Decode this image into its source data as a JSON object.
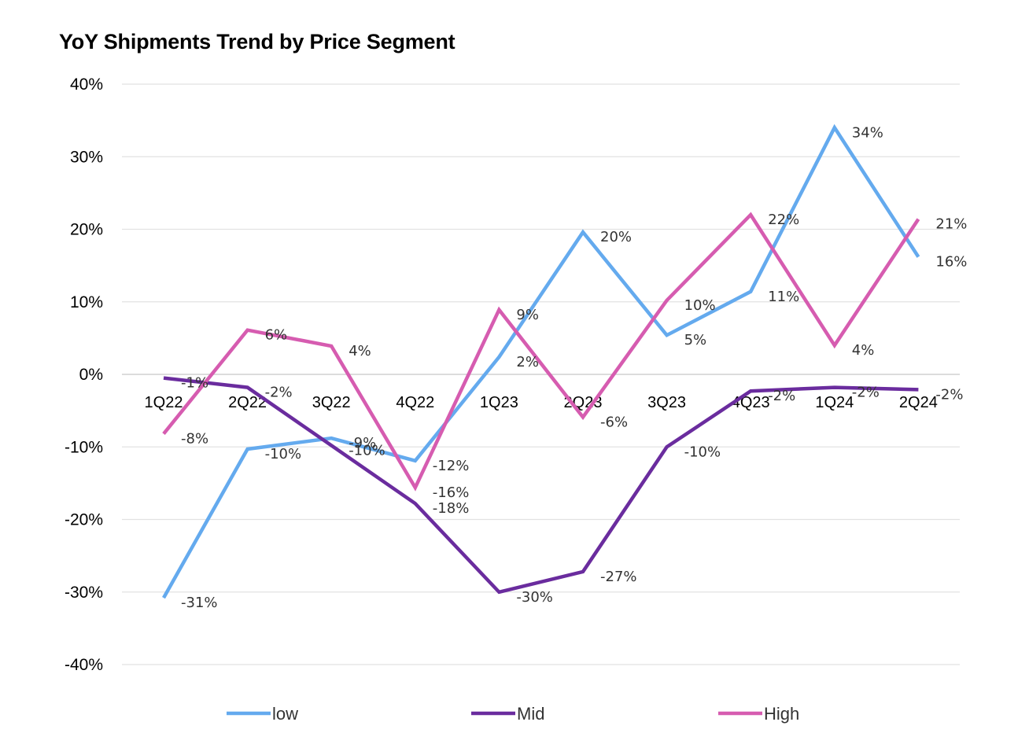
{
  "chart_data": {
    "type": "line",
    "title": "YoY Shipments Trend by Price Segment",
    "xlabel": "",
    "ylabel": "",
    "categories": [
      "1Q22",
      "2Q22",
      "3Q22",
      "4Q22",
      "1Q23",
      "2Q23",
      "3Q23",
      "4Q23",
      "1Q24",
      "2Q24"
    ],
    "ylim": [
      -40,
      40
    ],
    "yticks": [
      40,
      30,
      20,
      10,
      0,
      -10,
      -20,
      -30,
      -40
    ],
    "ytick_labels": [
      "40%",
      "30%",
      "20%",
      "10%",
      "0%",
      "-10%",
      "-20%",
      "-30%",
      "-40%"
    ],
    "grid": true,
    "legend_position": "bottom",
    "series": [
      {
        "name": "low",
        "color": "#64aaee",
        "values": [
          -30.8,
          -10.3,
          -8.8,
          -11.9,
          2.4,
          19.6,
          5.4,
          11.4,
          34.0,
          16.2
        ],
        "labels": [
          "-31%",
          "-10%",
          "-9%",
          "-12%",
          "2%",
          "20%",
          "5%",
          "11%",
          "34%",
          "16%"
        ]
      },
      {
        "name": "Mid",
        "color": "#6a2c9e",
        "values": [
          -0.5,
          -1.8,
          -9.8,
          -17.8,
          -30.0,
          -27.2,
          -10.0,
          -2.3,
          -1.8,
          -2.1
        ],
        "labels": [
          "-1%",
          "-2%",
          "-10%",
          "-18%",
          "-30%",
          "-27%",
          "-10%",
          "-2%",
          "-2%",
          "-2%"
        ]
      },
      {
        "name": "High",
        "color": "#d65cb0",
        "values": [
          -8.2,
          6.1,
          3.9,
          -15.6,
          8.9,
          -5.9,
          10.2,
          22.0,
          4.0,
          21.4
        ],
        "labels": [
          "-8%",
          "6%",
          "4%",
          "-16%",
          "9%",
          "-6%",
          "10%",
          "22%",
          "4%",
          "21%"
        ]
      }
    ]
  }
}
